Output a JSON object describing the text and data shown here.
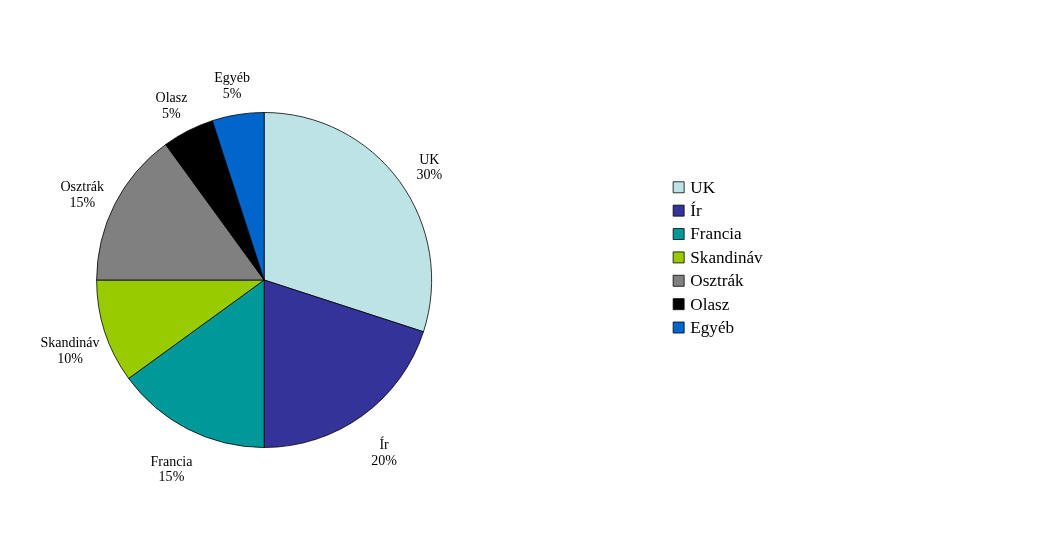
{
  "chart_data": {
    "type": "pie",
    "categories": [
      "UK",
      "Ír",
      "Francia",
      "Skandináv",
      "Osztrák",
      "Olasz",
      "Egyéb"
    ],
    "values": [
      30,
      20,
      15,
      10,
      15,
      5,
      5
    ],
    "colors": [
      "#bde3e6",
      "#333399",
      "#009999",
      "#99cc00",
      "#808080",
      "#000000",
      "#0066cc"
    ],
    "value_labels": [
      "30%",
      "20%",
      "15%",
      "10%",
      "15%",
      "5%",
      "5%"
    ],
    "legend": "right"
  }
}
